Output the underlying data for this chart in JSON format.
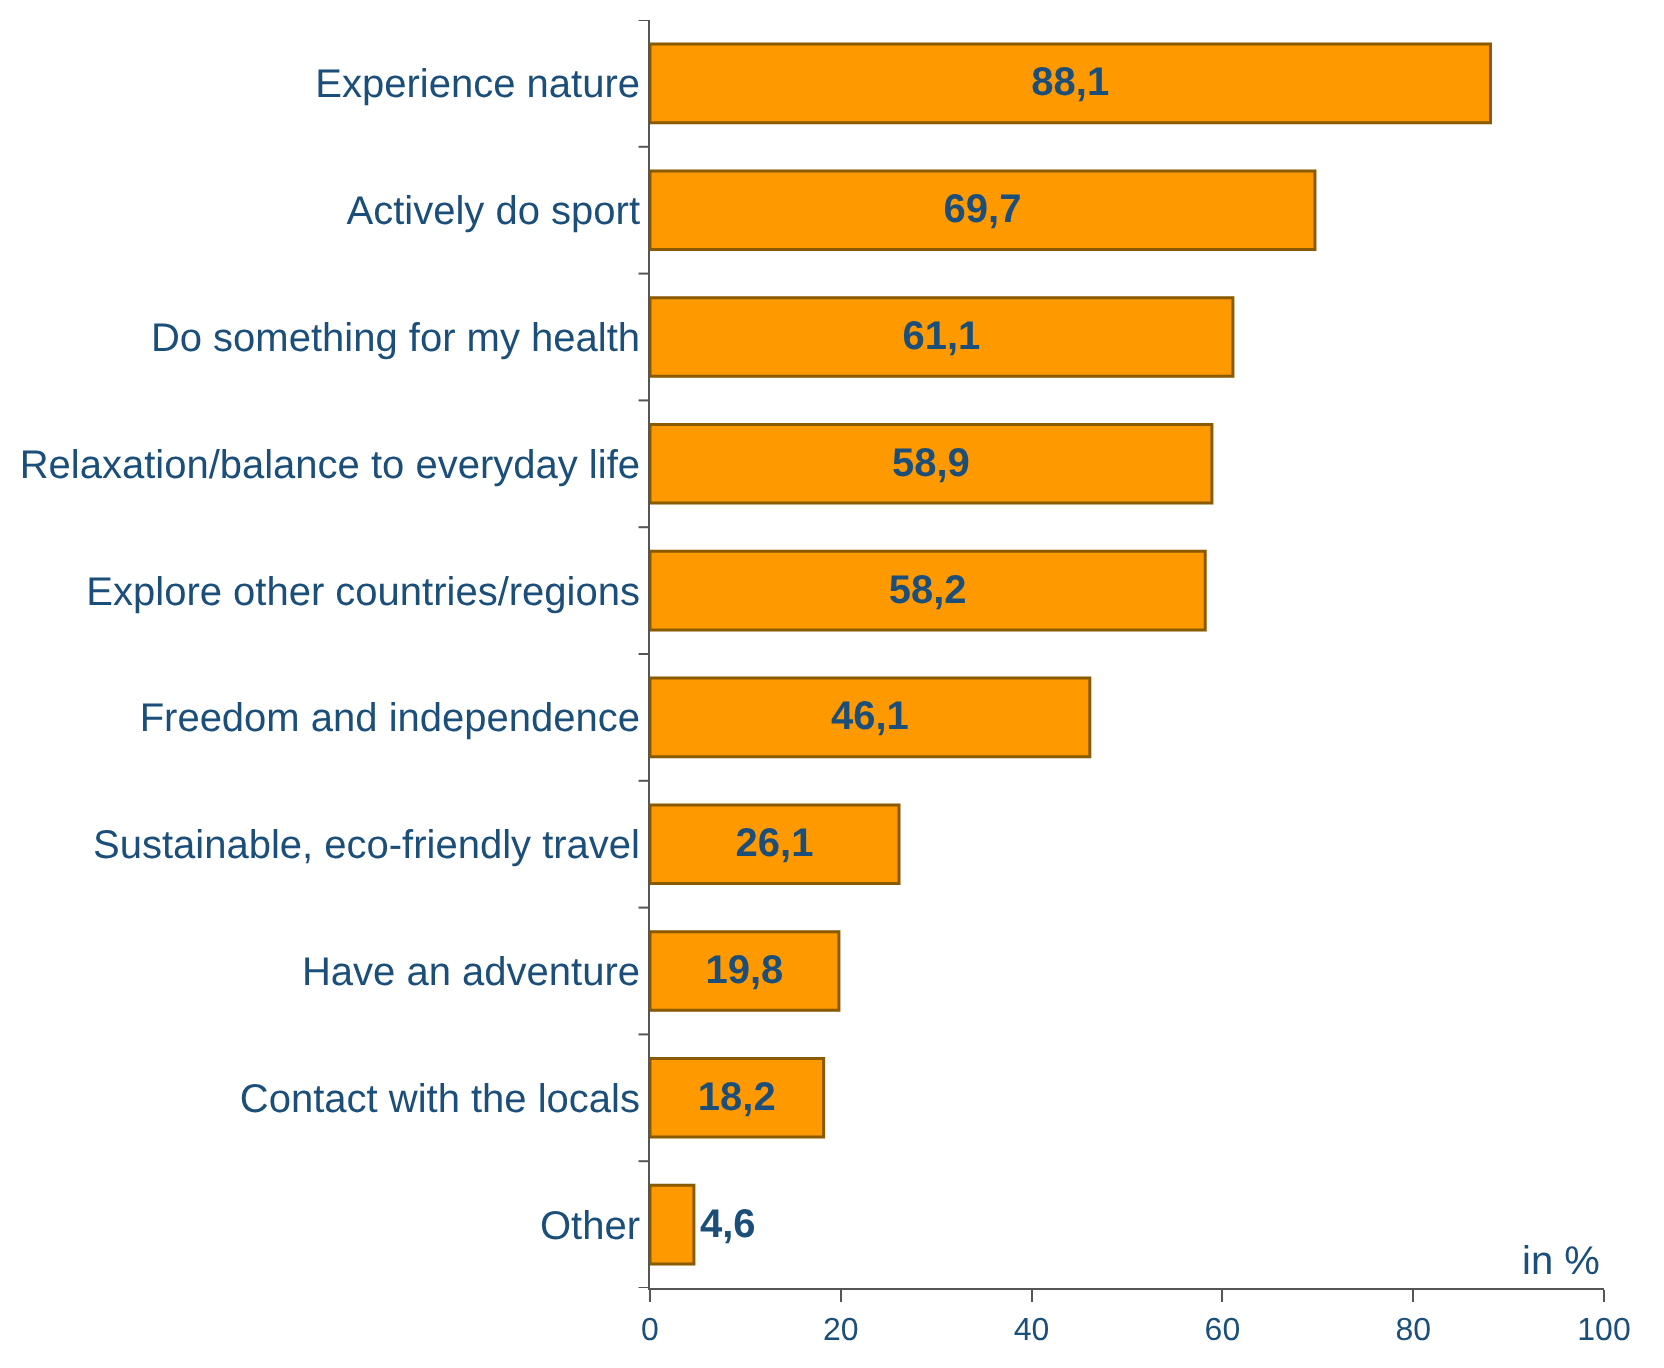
{
  "chart_data": {
    "type": "bar",
    "orientation": "horizontal",
    "categories": [
      "Experience nature",
      "Actively do sport",
      "Do something for my health",
      "Relaxation/balance to everyday life",
      "Explore other countries/regions",
      "Freedom and independence",
      "Sustainable, eco-friendly travel",
      "Have an adventure",
      "Contact with the locals",
      "Other"
    ],
    "values": [
      88.1,
      69.7,
      61.1,
      58.9,
      58.2,
      46.1,
      26.1,
      19.8,
      18.2,
      4.6
    ],
    "value_labels": [
      "88,1",
      "69,7",
      "61,1",
      "58,9",
      "58,2",
      "46,1",
      "26,1",
      "19,8",
      "18,2",
      "4,6"
    ],
    "color": "#ff9900",
    "xlim": [
      0,
      100
    ],
    "xticks": [
      0,
      20,
      40,
      60,
      80,
      100
    ],
    "annotations": [
      "in %"
    ]
  }
}
